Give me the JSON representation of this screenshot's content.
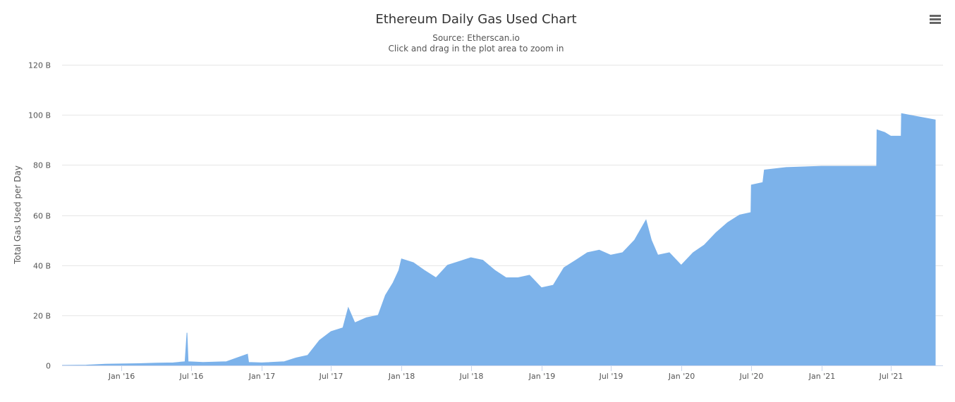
{
  "menu": {
    "icon": "hamburger-menu-icon"
  },
  "colors": {
    "series": "#7cb2ea",
    "grid": "#e6e6e6",
    "axis": "#ccd6eb",
    "text": "#333333"
  },
  "chart_data": {
    "type": "area",
    "title": "Ethereum Daily Gas Used Chart",
    "subtitle_source": "Source: Etherscan.io",
    "subtitle_hint": "Click and drag in the plot area to zoom in",
    "xlabel": "",
    "ylabel": "Total Gas Used per Day",
    "ylim": [
      0,
      120
    ],
    "y_ticks": [
      {
        "value": 0,
        "label": "0"
      },
      {
        "value": 20,
        "label": "20 B"
      },
      {
        "value": 40,
        "label": "40 B"
      },
      {
        "value": 60,
        "label": "60 B"
      },
      {
        "value": 80,
        "label": "80 B"
      },
      {
        "value": 100,
        "label": "100 B"
      },
      {
        "value": 120,
        "label": "120 B"
      }
    ],
    "xlim": [
      "2015-07-30",
      "2021-10-25"
    ],
    "x_ticks": [
      {
        "date": "2016-01-01",
        "label": "Jan '16"
      },
      {
        "date": "2016-07-01",
        "label": "Jul '16"
      },
      {
        "date": "2017-01-01",
        "label": "Jan '17"
      },
      {
        "date": "2017-07-01",
        "label": "Jul '17"
      },
      {
        "date": "2018-01-01",
        "label": "Jan '18"
      },
      {
        "date": "2018-07-01",
        "label": "Jul '18"
      },
      {
        "date": "2019-01-01",
        "label": "Jan '19"
      },
      {
        "date": "2019-07-01",
        "label": "Jul '19"
      },
      {
        "date": "2020-01-01",
        "label": "Jan '20"
      },
      {
        "date": "2020-07-01",
        "label": "Jul '20"
      },
      {
        "date": "2021-01-01",
        "label": "Jan '21"
      },
      {
        "date": "2021-07-01",
        "label": "Jul '21"
      }
    ],
    "series": [
      {
        "name": "Total Gas Used per Day (B)",
        "points": [
          [
            "2015-07-30",
            0.0
          ],
          [
            "2015-10-01",
            0.1
          ],
          [
            "2015-11-20",
            0.5
          ],
          [
            "2016-01-01",
            0.6
          ],
          [
            "2016-02-15",
            0.7
          ],
          [
            "2016-04-01",
            0.9
          ],
          [
            "2016-05-15",
            1.0
          ],
          [
            "2016-06-15",
            1.5
          ],
          [
            "2016-06-20",
            13.0
          ],
          [
            "2016-06-23",
            1.5
          ],
          [
            "2016-08-01",
            1.2
          ],
          [
            "2016-10-01",
            1.5
          ],
          [
            "2016-11-25",
            4.5
          ],
          [
            "2016-11-28",
            1.2
          ],
          [
            "2017-01-01",
            1.0
          ],
          [
            "2017-03-01",
            1.5
          ],
          [
            "2017-04-01",
            3.0
          ],
          [
            "2017-05-01",
            4.0
          ],
          [
            "2017-06-01",
            10.0
          ],
          [
            "2017-07-01",
            13.5
          ],
          [
            "2017-08-01",
            15.0
          ],
          [
            "2017-08-15",
            23.0
          ],
          [
            "2017-09-01",
            17.0
          ],
          [
            "2017-10-01",
            19.0
          ],
          [
            "2017-11-01",
            20.0
          ],
          [
            "2017-11-20",
            28.0
          ],
          [
            "2017-12-10",
            33.0
          ],
          [
            "2017-12-25",
            38.0
          ],
          [
            "2018-01-01",
            42.5
          ],
          [
            "2018-02-01",
            41.0
          ],
          [
            "2018-03-01",
            38.0
          ],
          [
            "2018-04-01",
            35.0
          ],
          [
            "2018-05-01",
            40.0
          ],
          [
            "2018-06-01",
            41.5
          ],
          [
            "2018-07-01",
            43.0
          ],
          [
            "2018-08-01",
            42.0
          ],
          [
            "2018-09-01",
            38.0
          ],
          [
            "2018-10-01",
            35.0
          ],
          [
            "2018-11-01",
            35.0
          ],
          [
            "2018-12-01",
            36.0
          ],
          [
            "2019-01-01",
            31.0
          ],
          [
            "2019-02-01",
            32.0
          ],
          [
            "2019-03-01",
            39.0
          ],
          [
            "2019-04-01",
            42.0
          ],
          [
            "2019-05-01",
            45.0
          ],
          [
            "2019-06-01",
            46.0
          ],
          [
            "2019-07-01",
            44.0
          ],
          [
            "2019-08-01",
            45.0
          ],
          [
            "2019-09-01",
            50.0
          ],
          [
            "2019-10-01",
            58.0
          ],
          [
            "2019-10-15",
            50.0
          ],
          [
            "2019-11-01",
            44.0
          ],
          [
            "2019-12-01",
            45.0
          ],
          [
            "2020-01-01",
            40.0
          ],
          [
            "2020-02-01",
            45.0
          ],
          [
            "2020-03-01",
            48.0
          ],
          [
            "2020-04-01",
            53.0
          ],
          [
            "2020-05-01",
            57.0
          ],
          [
            "2020-06-01",
            60.0
          ],
          [
            "2020-07-01",
            61.0
          ],
          [
            "2020-07-02",
            72.0
          ],
          [
            "2020-08-01",
            73.0
          ],
          [
            "2020-08-05",
            78.0
          ],
          [
            "2020-10-01",
            79.0
          ],
          [
            "2021-01-01",
            79.5
          ],
          [
            "2021-05-25",
            79.5
          ],
          [
            "2021-05-26",
            94.0
          ],
          [
            "2021-06-15",
            93.0
          ],
          [
            "2021-07-01",
            91.5
          ],
          [
            "2021-07-28",
            91.5
          ],
          [
            "2021-07-29",
            100.5
          ],
          [
            "2021-09-01",
            99.5
          ],
          [
            "2021-10-25",
            98.0
          ]
        ]
      }
    ]
  }
}
